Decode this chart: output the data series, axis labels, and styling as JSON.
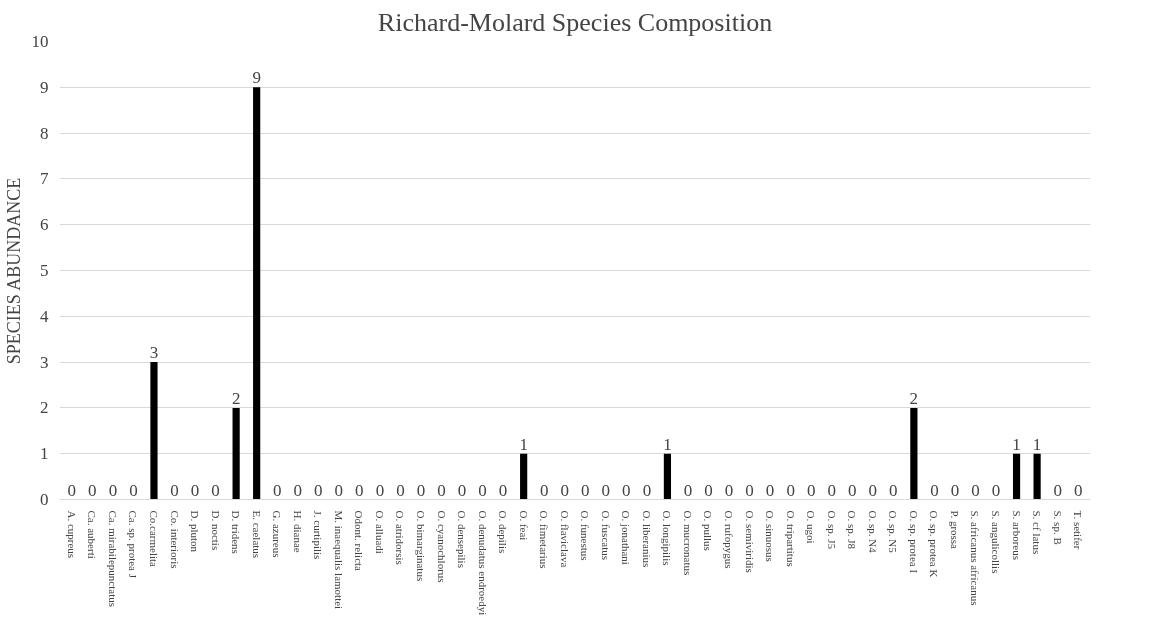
{
  "chart_data": {
    "type": "bar",
    "title": "Richard-Molard Species Composition",
    "ylabel": "SPECIES ABUNDANCE",
    "categories": [
      "A. cupreus",
      "Ca. auberti",
      "Ca. mirabilepunctatus",
      "Ca. sp. protea J",
      "Co.carmelita",
      "Co. interioris",
      "D. pluton",
      "D. noctis",
      "D. tridens",
      "E. caelatus",
      "G. azureus",
      "H. dianae",
      "J. curtipilis",
      "M. inaequalis lamottei",
      "Odont. relicta",
      "O. alluadi",
      "O. atridorsis",
      "O. bimarginatus",
      "O. cyanochlorus",
      "O. densepilis",
      "O. denudatus endroedyi",
      "O. depilis",
      "O. feai",
      "O. fimetarius",
      "O. flaviclava",
      "O. funestus",
      "O. fuscatus",
      "O. jonathani",
      "O. liberanius",
      "O. longipilis",
      "O. mucronatus",
      "O. pullus",
      "O. rufopygus",
      "O. semiviridis",
      "O. sinuosus",
      "O. tripartitus",
      "O. ugoi",
      "O. sp. J5",
      "O. sp. J8",
      "O. sp. N4",
      "O. sp. N5",
      "O. sp. protea I",
      "O. sp. protea K",
      "P. grossa",
      "S. africanus africanus",
      "S. angulicollis",
      "S. arboreus",
      "S. cf latus",
      "S. sp. B",
      "T. setifer"
    ],
    "values": [
      0,
      0,
      0,
      0,
      3,
      0,
      0,
      0,
      2,
      9,
      0,
      0,
      0,
      0,
      0,
      0,
      0,
      0,
      0,
      0,
      0,
      0,
      1,
      0,
      0,
      0,
      0,
      0,
      0,
      1,
      0,
      0,
      0,
      0,
      0,
      0,
      0,
      0,
      0,
      0,
      0,
      2,
      0,
      0,
      0,
      0,
      1,
      1,
      0,
      0
    ],
    "color": "#000000",
    "ylim": [
      0,
      10
    ],
    "yticks": [
      0,
      1,
      2,
      3,
      4,
      5,
      6,
      7,
      8,
      9,
      10
    ],
    "grid": "y",
    "data_labels": true
  }
}
